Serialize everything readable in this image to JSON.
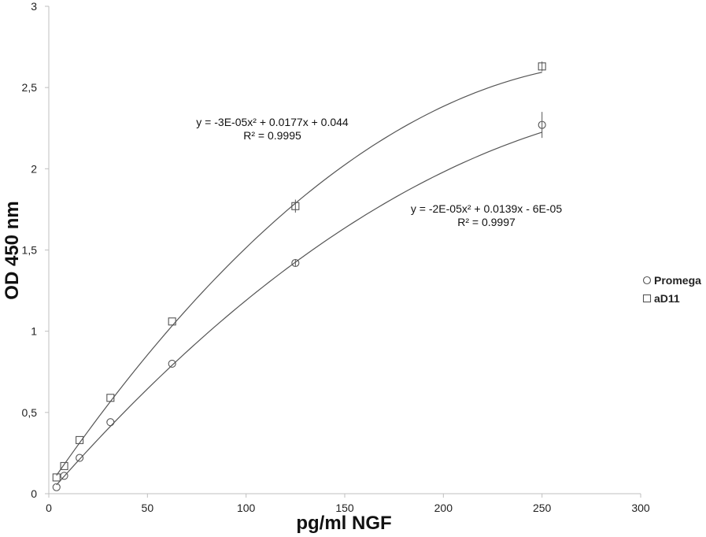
{
  "chart_data": {
    "type": "scatter",
    "xlabel": "pg/ml NGF",
    "ylabel": "OD 450 nm",
    "xlim": [
      0,
      300
    ],
    "ylim": [
      0,
      3
    ],
    "xticks": [
      0,
      50,
      100,
      150,
      200,
      250,
      300
    ],
    "yticks": [
      0,
      0.5,
      1,
      1.5,
      2,
      2.5,
      3
    ],
    "xtick_labels": [
      "0",
      "50",
      "100",
      "150",
      "200",
      "250",
      "300"
    ],
    "ytick_labels": [
      "0",
      "0,5",
      "1",
      "1,5",
      "2",
      "2,5",
      "3"
    ],
    "grid": false,
    "legend_position": "right",
    "series": [
      {
        "name": "Promega",
        "marker": "circle",
        "x": [
          3.9,
          7.8,
          15.6,
          31.25,
          62.5,
          125,
          250
        ],
        "y": [
          0.04,
          0.11,
          0.22,
          0.44,
          0.8,
          1.42,
          2.27
        ],
        "error": [
          0,
          0,
          0,
          0,
          0,
          0.02,
          0.08
        ],
        "trendline": {
          "type": "polynomial",
          "coefficients": [
            -2e-05,
            0.0139,
            -6e-05
          ],
          "equation": "y = -2E-05x² + 0.0139x - 6E-05",
          "r2": "R² = 0.9997"
        }
      },
      {
        "name": "aD11",
        "marker": "square",
        "x": [
          3.9,
          7.8,
          15.6,
          31.25,
          62.5,
          125,
          250
        ],
        "y": [
          0.1,
          0.17,
          0.33,
          0.59,
          1.06,
          1.77,
          2.63
        ],
        "error": [
          0,
          0,
          0,
          0,
          0,
          0.04,
          0.03
        ],
        "trendline": {
          "type": "polynomial",
          "coefficients": [
            -3e-05,
            0.0177,
            0.044
          ],
          "equation": "y = -3E-05x² + 0.0177x + 0.044",
          "r2": "R² = 0.9995"
        }
      }
    ],
    "colors": {
      "axis": "#bfbfbf",
      "marker": "#555555",
      "line": "#555555"
    }
  }
}
